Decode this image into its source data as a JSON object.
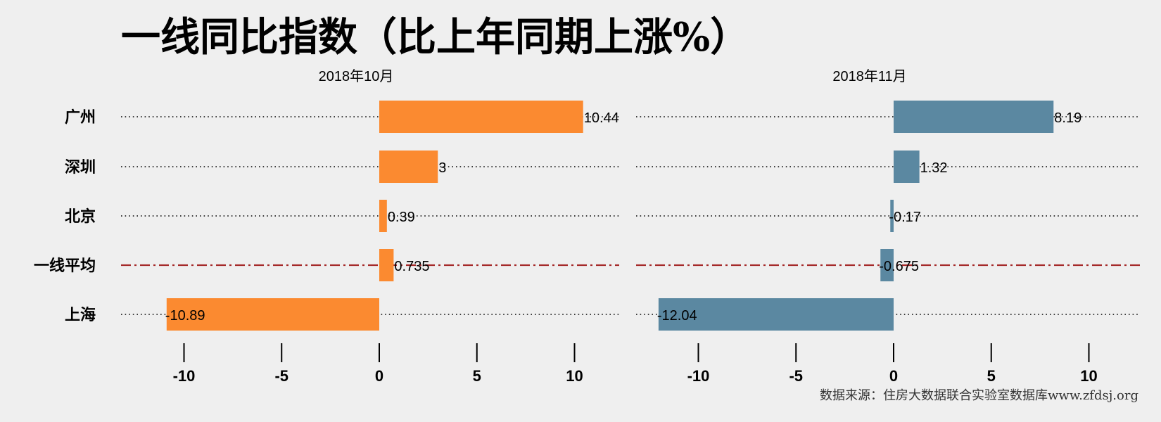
{
  "chart_data": {
    "type": "bar",
    "orientation": "horizontal",
    "title": "一线同比指数（比上年同期上涨%）",
    "categories": [
      "广州",
      "深圳",
      "北京",
      "一线平均",
      "上海"
    ],
    "xlim": [
      -12.5,
      12.5
    ],
    "xticks": [
      -10,
      -5,
      0,
      5,
      10
    ],
    "panels": [
      {
        "name": "2018年10月",
        "color": "#fb8a30",
        "values": [
          10.44,
          3,
          0.39,
          0.735,
          -10.89
        ],
        "labels": [
          "10.44",
          "3",
          "0.39",
          "0.735",
          "-10.89"
        ]
      },
      {
        "name": "2018年11月",
        "color": "#5b88a1",
        "values": [
          8.19,
          1.32,
          -0.17,
          -0.675,
          -12.04
        ],
        "labels": [
          "8.19",
          "1.32",
          "-0.17",
          "-0.675",
          "-12.04"
        ]
      }
    ],
    "average_line_color": "#a52a2a",
    "source": "数据来源：住房大数据联合实验室数据库www.zfdsj.org"
  }
}
